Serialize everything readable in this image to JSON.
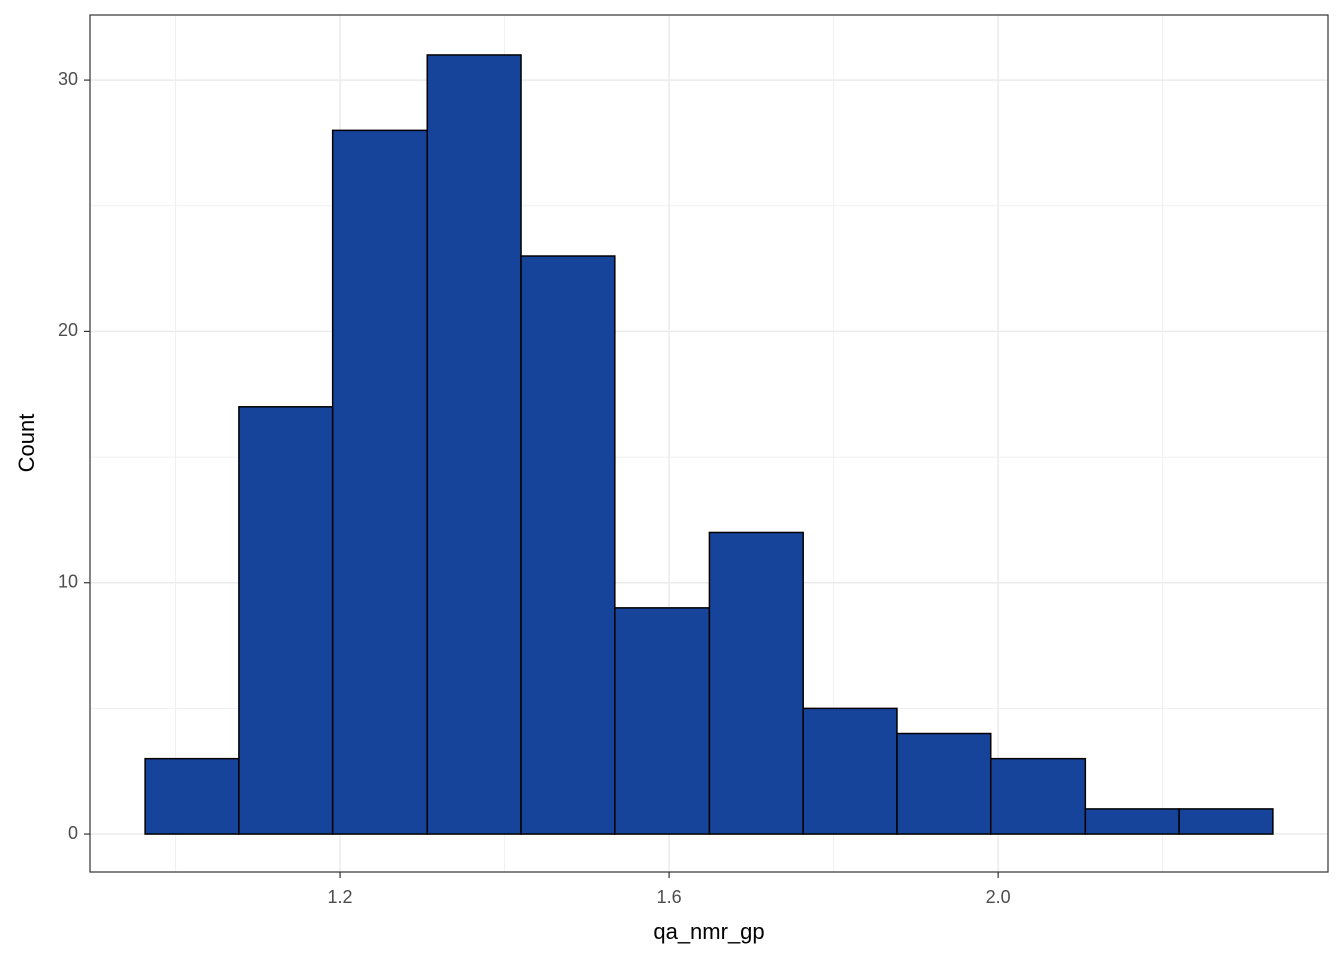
{
  "chart_data": {
    "type": "histogram",
    "x_label": "qa_nmr_gp",
    "y_label": "Count",
    "bins": [
      0.963,
      1.077,
      1.191,
      1.306,
      1.42,
      1.534,
      1.649,
      1.763,
      1.877,
      1.991,
      2.106,
      2.22,
      2.334
    ],
    "values": [
      3,
      17,
      28,
      31,
      23,
      9,
      12,
      5,
      4,
      3,
      1,
      1
    ],
    "color": "#17449b",
    "edge_color": "#000000",
    "xlim": [
      0.896,
      2.401
    ],
    "ylim": [
      -1.51,
      32.59
    ],
    "xticks": [
      1.2,
      1.6,
      {
        "value": 2,
        "label": "2.0"
      }
    ],
    "yticks": [
      0,
      10,
      20,
      30
    ],
    "grid": true,
    "minor_grid": true
  }
}
